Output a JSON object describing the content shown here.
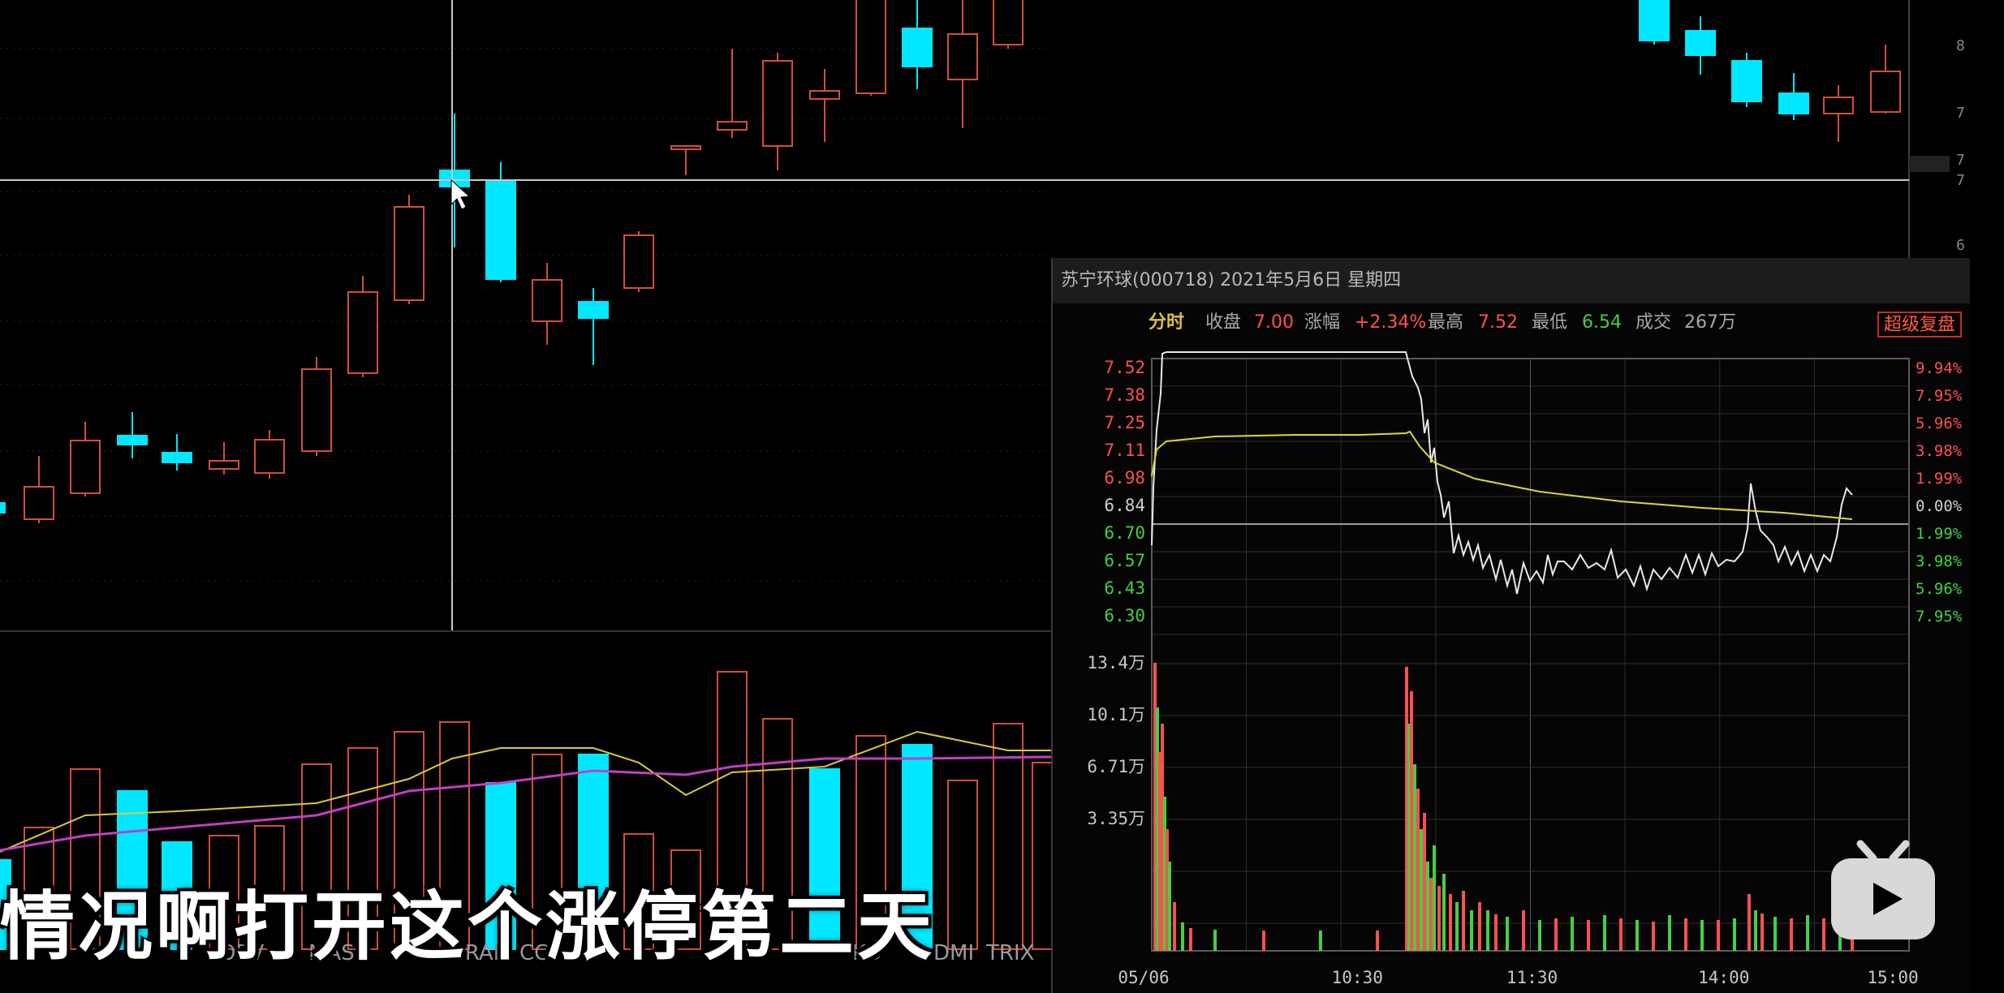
{
  "main_chart": {
    "y_axis_labels": [
      "8",
      "7",
      "7",
      "7",
      "6"
    ],
    "indicator_tabs": [
      "OBV",
      "MAS",
      "BRAR",
      "CCI",
      "KD",
      "DMI",
      "TRIX"
    ],
    "colors": {
      "up": "#d24e3c",
      "down": "#00e8ff",
      "ma5": "#d8c840",
      "ma10": "#c040c0",
      "crosshair": "#c8c8c8"
    }
  },
  "popup": {
    "title": "苏宁环球(000718) 2021年5月6日 星期四",
    "tab": "分时",
    "close_label": "收盘",
    "close_value": "7.00",
    "change_label": "涨幅",
    "change_value": "+2.34%",
    "high_label": "最高",
    "high_value": "7.52",
    "low_label": "最低",
    "low_value": "6.54",
    "volume_label": "成交",
    "volume_value": "267万",
    "super_button": "超级复盘",
    "price_axis": [
      "7.52",
      "7.38",
      "7.25",
      "7.11",
      "6.98",
      "6.84",
      "6.70",
      "6.57",
      "6.43",
      "6.30"
    ],
    "pct_axis": [
      "9.94%",
      "7.95%",
      "5.96%",
      "3.98%",
      "1.99%",
      "0.00%",
      "1.99%",
      "3.98%",
      "5.96%",
      "7.95%"
    ],
    "volume_axis": [
      "13.4万",
      "10.1万",
      "6.71万",
      "3.35万"
    ],
    "time_axis": [
      "05/06",
      "10:30",
      "11:30",
      "14:00",
      "15:00"
    ],
    "colors": {
      "price_line": "#e8e8e8",
      "avg_line": "#d8d840",
      "up": "#ff5050",
      "down": "#44d044",
      "grid": "#2e2e2e"
    }
  },
  "subtitle": "情况啊打开这个涨停第二天"
}
